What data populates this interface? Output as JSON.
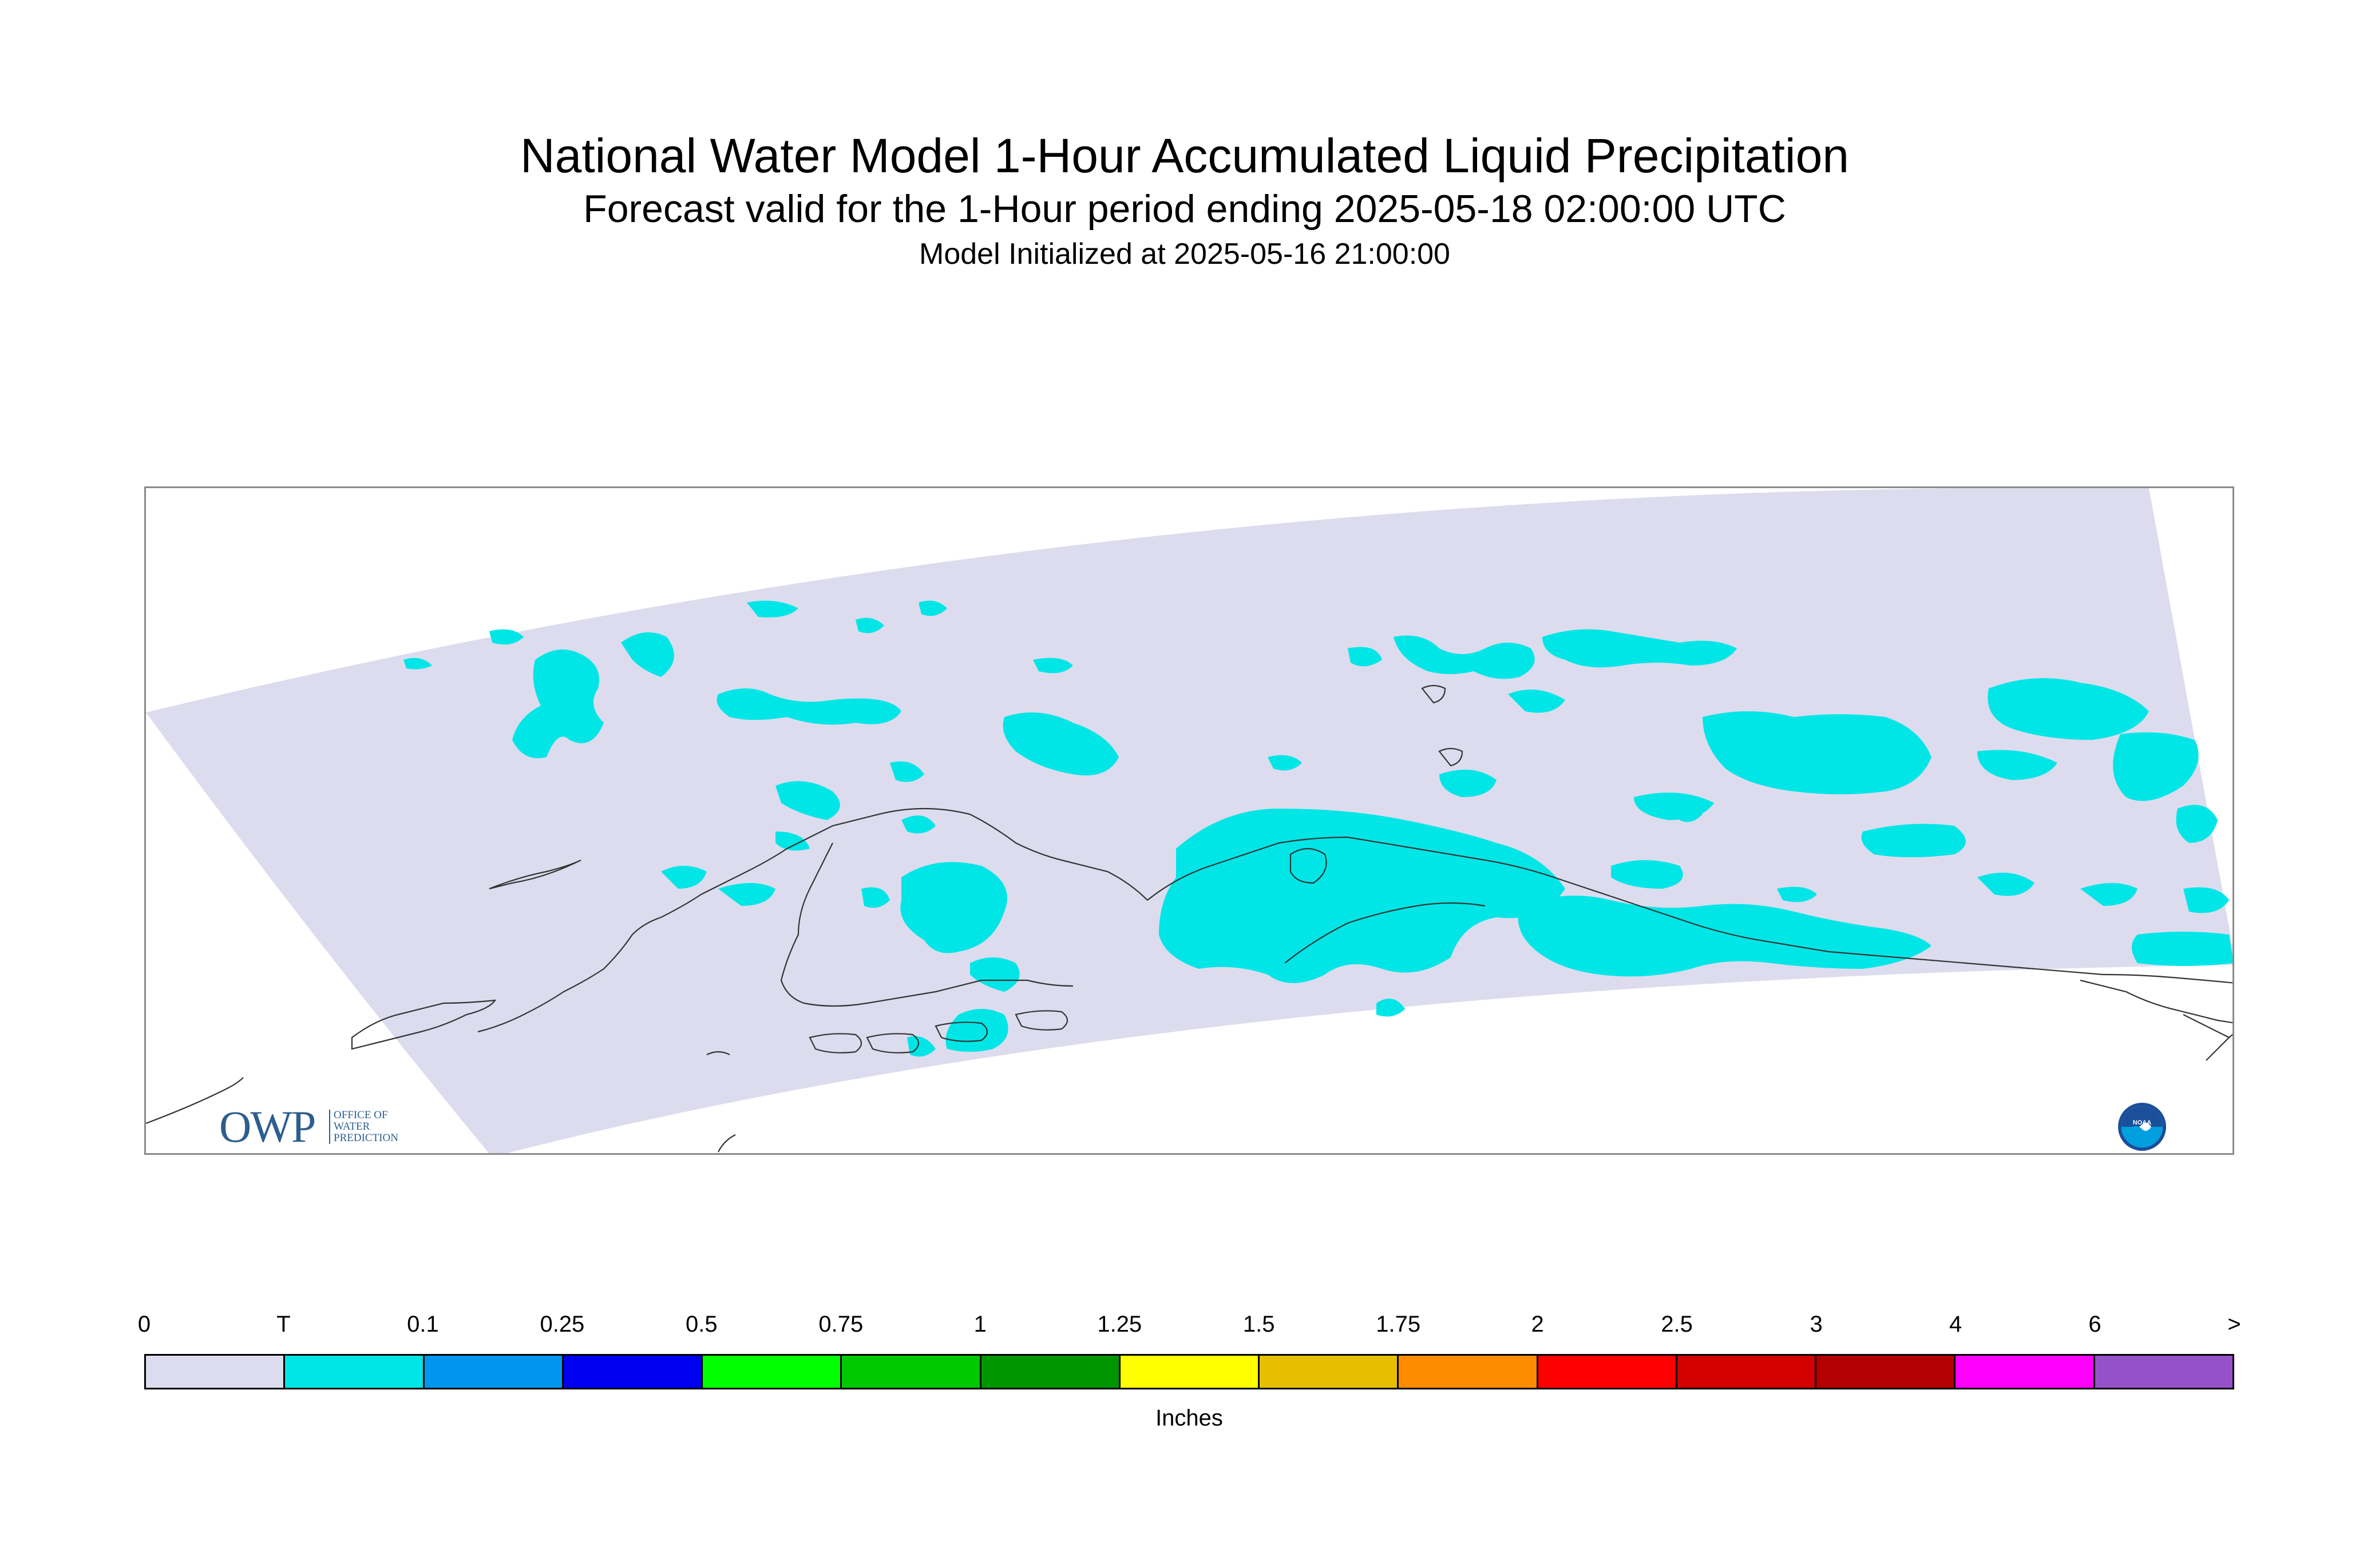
{
  "title": {
    "main": "National Water Model 1-Hour Accumulated Liquid Precipitation",
    "subtitle": "Forecast valid for the 1-Hour period ending 2025-05-18 02:00:00 UTC",
    "initialized": "Model Initialized at 2025-05-16 21:00:00"
  },
  "logos": {
    "owp_mark": "OWP",
    "owp_text_lines": [
      "OFFICE OF",
      "WATER",
      "PREDICTION"
    ],
    "noaa_mark": "NOAA"
  },
  "legend": {
    "units": "Inches",
    "labels": [
      "0",
      "T",
      "0.1",
      "0.25",
      "0.5",
      "0.75",
      "1",
      "1.25",
      "1.5",
      "1.75",
      "2",
      "2.5",
      "3",
      "4",
      "6",
      ">"
    ],
    "colors": [
      "#dcdcee",
      "#00e6e6",
      "#0096f0",
      "#0000f0",
      "#00ff00",
      "#00c800",
      "#009600",
      "#ffff00",
      "#e6c000",
      "#ff8c00",
      "#ff0000",
      "#d20000",
      "#b40000",
      "#ff00ff",
      "#9650c8"
    ]
  },
  "map": {
    "domain_fill": "#dcdcee",
    "precip_fill": "#00e6e6",
    "coast_color": "#333333"
  }
}
